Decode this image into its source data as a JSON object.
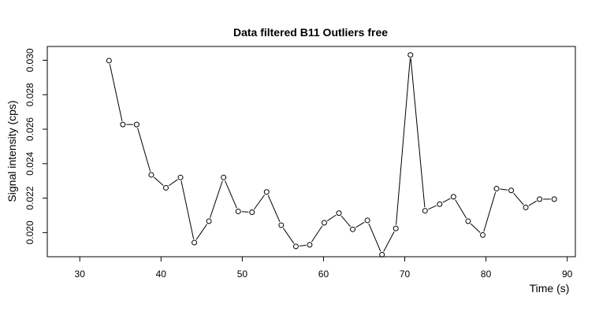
{
  "chart_data": {
    "type": "line",
    "title": "Data filtered B11 Outliers free",
    "xlabel": "Time (s)",
    "ylabel": "Signal intensity (cps)",
    "xlim": [
      26,
      91
    ],
    "ylim": [
      0.0186,
      0.0308
    ],
    "x_ticks": [
      "30",
      "40",
      "50",
      "60",
      "70",
      "80",
      "90"
    ],
    "y_ticks": [
      "0.020",
      "0.022",
      "0.024",
      "0.026",
      "0.028",
      "0.030"
    ],
    "grid": false,
    "legend": "none",
    "line_color": "#000000",
    "series": [
      {
        "x": [
          33.6,
          35.3,
          37.0,
          38.8,
          40.6,
          42.4,
          44.1,
          45.9,
          47.7,
          49.5,
          51.2,
          53.0,
          54.8,
          56.6,
          58.3,
          60.1,
          61.9,
          63.6,
          65.4,
          67.2,
          68.9,
          70.7,
          72.5,
          74.3,
          76.0,
          77.8,
          79.6,
          81.3,
          83.1,
          84.9,
          86.6,
          88.4
        ],
        "y": [
          0.02998,
          0.02627,
          0.02627,
          0.02335,
          0.0226,
          0.0232,
          0.01942,
          0.02066,
          0.0232,
          0.02123,
          0.02118,
          0.02236,
          0.02043,
          0.0192,
          0.01929,
          0.02057,
          0.02113,
          0.02019,
          0.02071,
          0.01872,
          0.02024,
          0.03031,
          0.02127,
          0.02165,
          0.02208,
          0.02066,
          0.01986,
          0.02255,
          0.02245,
          0.02146,
          0.02194,
          0.02194
        ]
      }
    ]
  }
}
